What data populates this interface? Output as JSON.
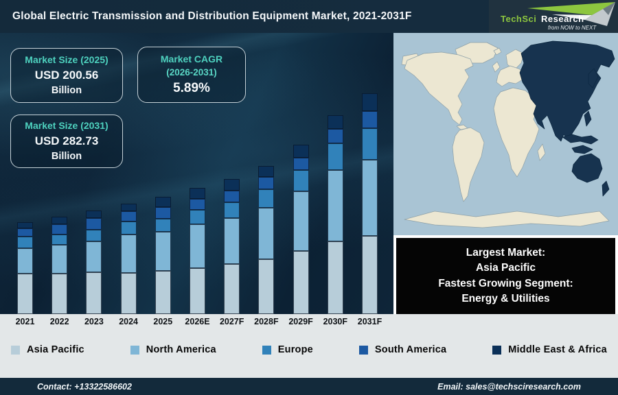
{
  "header": {
    "title": "Global Electric Transmission and Distribution Equipment Market, 2021-2031F",
    "logo": {
      "brand_primary": "TechSci",
      "brand_secondary": "Research",
      "tagline": "from NOW to NEXT",
      "brand_green": "#8dc63f"
    }
  },
  "callouts": {
    "box_2025": {
      "label": "Market Size (2025)",
      "value": "USD 200.56",
      "unit": "Billion"
    },
    "box_cagr": {
      "label": "Market CAGR",
      "sublabel": "(2026-2031)",
      "value": "5.89%"
    },
    "box_2031": {
      "label": "Market Size (2031)",
      "value": "USD 282.73",
      "unit": "Billion"
    }
  },
  "highlight_box": {
    "lines": [
      "Largest Market:",
      "Asia Pacific",
      "Fastest Growing Segment:",
      "Energy & Utilities"
    ]
  },
  "map": {
    "highlighted_region": "Asia Pacific",
    "colors": {
      "ocean": "#a9c4d4",
      "land": "#ece7d2",
      "highlight": "#17334f"
    }
  },
  "chart_data": {
    "type": "bar",
    "stacked": true,
    "title": "Global Electric Transmission and Distribution Equipment Market, 2021-2031F",
    "categories": [
      "2021",
      "2022",
      "2023",
      "2024",
      "2025",
      "2026E",
      "2027F",
      "2028F",
      "2029F",
      "2030F",
      "2031F"
    ],
    "series": [
      {
        "name": "Asia Pacific",
        "color": "#b7cdd9",
        "values": [
          59,
          59,
          61,
          60,
          63,
          67,
          73,
          80,
          92,
          106,
          114
        ]
      },
      {
        "name": "North America",
        "color": "#7fb6d6",
        "values": [
          37,
          42,
          45,
          56,
          57,
          64,
          67,
          75,
          87,
          104,
          111
        ]
      },
      {
        "name": "Europe",
        "color": "#3182ba",
        "values": [
          17,
          15,
          17,
          19,
          19,
          21,
          23,
          27,
          31,
          39,
          46
        ]
      },
      {
        "name": "South America",
        "color": "#1c59a2",
        "values": [
          12,
          15,
          17,
          15,
          17,
          16,
          17,
          18,
          18,
          21,
          25
        ]
      },
      {
        "name": "Middle East & Africa",
        "color": "#0b3058",
        "values": [
          9,
          11,
          11,
          11,
          15,
          16,
          17,
          16,
          19,
          20,
          26
        ]
      }
    ],
    "unit": "relative segment heights in px (chart shows no value axis)",
    "labeled_values": {
      "market_size_2025_usd_billion": 200.56,
      "market_size_2031_usd_billion": 282.73,
      "cagr_2026_2031_percent": 5.89
    },
    "xlabel": "",
    "ylabel": "",
    "grid": false,
    "legend_position": "bottom"
  },
  "footer": {
    "contact": "Contact: +13322586602",
    "email": "Email: sales@techsciresearch.com"
  }
}
